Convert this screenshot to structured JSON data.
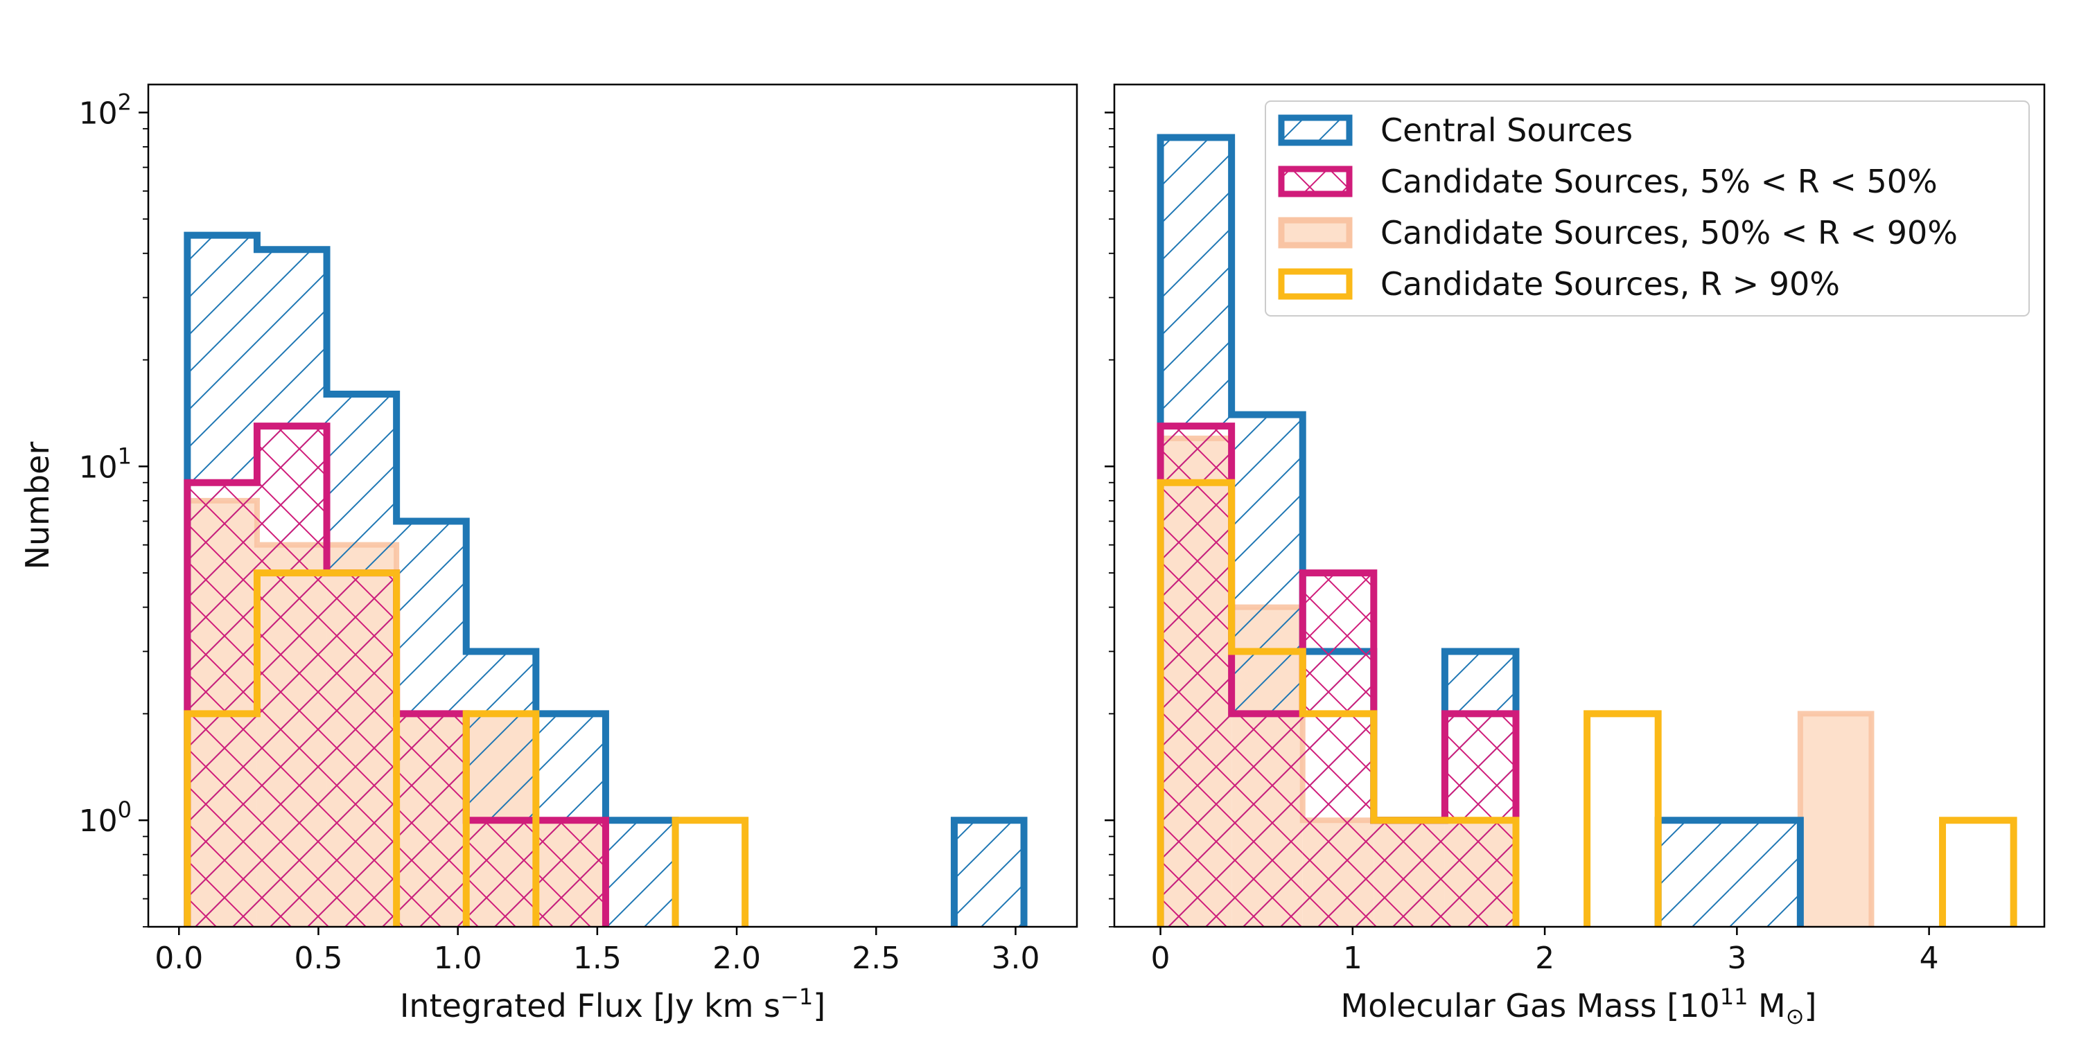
{
  "colors": {
    "central": "#1f77b4",
    "cand_5_50": "#d01c7a",
    "cand_50_90_fill": "#fde0cb",
    "cand_50_90_edge": "#f9c4a3",
    "cand_gt90": "#fbb918"
  },
  "y_label": "Number",
  "y_ticks": [
    {
      "base": "10",
      "exp": "0",
      "value": 1
    },
    {
      "base": "10",
      "exp": "1",
      "value": 10
    },
    {
      "base": "10",
      "exp": "2",
      "value": 100
    }
  ],
  "legend": [
    {
      "key": "central",
      "label": "Central Sources"
    },
    {
      "key": "cand_5_50",
      "label": "Candidate Sources, 5% < R < 50%"
    },
    {
      "key": "cand_50_90",
      "label": "Candidate Sources, 50% < R < 90%"
    },
    {
      "key": "cand_gt90",
      "label": "Candidate Sources, R > 90%"
    }
  ],
  "chart_data": [
    {
      "type": "histogram",
      "id": "left",
      "xlabel": "Integrated Flux [Jy km s",
      "xlabel_sup": "−1",
      "xlabel_tail": "]",
      "yscale": "log",
      "ylim": [
        0.5,
        120
      ],
      "xlim": [
        -0.11,
        3.22
      ],
      "xticks": [
        "0.0",
        "0.5",
        "1.0",
        "1.5",
        "2.0",
        "2.5",
        "3.0"
      ],
      "xtick_values": [
        0,
        0.5,
        1.0,
        1.5,
        2.0,
        2.5,
        3.0
      ],
      "series": [
        {
          "key": "cand_50_90",
          "name": "Candidate Sources, 50% < R < 90%",
          "style": "fill",
          "edges": [
            0.03,
            0.28,
            0.53,
            0.78,
            1.03,
            1.28,
            1.53
          ],
          "counts": [
            8,
            6,
            6,
            2,
            2,
            1
          ]
        },
        {
          "key": "central",
          "name": "Central Sources",
          "style": "hatch-diag",
          "edges": [
            0.03,
            0.28,
            0.53,
            0.78,
            1.03,
            1.28,
            1.53,
            1.78,
            2.03,
            2.28,
            2.53,
            2.78,
            3.03
          ],
          "counts": [
            45,
            41,
            16,
            7,
            3,
            2,
            1,
            0,
            0,
            0,
            0,
            1
          ]
        },
        {
          "key": "cand_5_50",
          "name": "Candidate Sources, 5% < R < 50%",
          "style": "hatch-cross",
          "edges": [
            0.03,
            0.28,
            0.53,
            0.78,
            1.03,
            1.28,
            1.53
          ],
          "counts": [
            9,
            13,
            5,
            2,
            1,
            1
          ]
        },
        {
          "key": "cand_gt90",
          "name": "Candidate Sources, R > 90%",
          "style": "outline",
          "edges": [
            0.03,
            0.28,
            0.53,
            0.78,
            1.03,
            1.28,
            1.53,
            1.78,
            2.03
          ],
          "counts": [
            2,
            5,
            5,
            0,
            2,
            0,
            0,
            1
          ]
        }
      ]
    },
    {
      "type": "histogram",
      "id": "right",
      "xlabel": "Molecular Gas Mass [10",
      "xlabel_sup": "11",
      "xlabel_tail": " M",
      "xlabel_sub": "⊙",
      "xlabel_end": "]",
      "yscale": "log",
      "ylim": [
        0.5,
        120
      ],
      "xlim": [
        -0.24,
        4.6
      ],
      "xticks": [
        "0",
        "1",
        "2",
        "3",
        "4"
      ],
      "xtick_values": [
        0,
        1,
        2,
        3,
        4
      ],
      "series": [
        {
          "key": "cand_50_90",
          "name": "Candidate Sources, 50% < R < 90%",
          "style": "fill",
          "edges": [
            0,
            0.37,
            0.74,
            1.11,
            1.48,
            1.85,
            2.22,
            2.59,
            2.96,
            3.33,
            3.7
          ],
          "counts": [
            12,
            4,
            1,
            1,
            1,
            0,
            0,
            0,
            0,
            2
          ]
        },
        {
          "key": "central",
          "name": "Central Sources",
          "style": "hatch-diag",
          "edges": [
            0,
            0.37,
            0.74,
            1.11,
            1.48,
            1.85,
            2.22,
            2.59,
            2.96,
            3.33
          ],
          "counts": [
            85,
            14,
            3,
            1,
            3,
            0,
            0,
            1,
            1
          ]
        },
        {
          "key": "cand_5_50",
          "name": "Candidate Sources, 5% < R < 50%",
          "style": "hatch-cross",
          "edges": [
            0,
            0.37,
            0.74,
            1.11,
            1.48,
            1.85
          ],
          "counts": [
            13,
            2,
            5,
            1,
            2
          ]
        },
        {
          "key": "cand_gt90",
          "name": "Candidate Sources, R > 90%",
          "style": "outline",
          "edges": [
            0,
            0.37,
            0.74,
            1.11,
            1.48,
            1.85,
            2.22,
            2.59,
            2.96,
            3.33,
            3.7,
            4.07,
            4.44
          ],
          "counts": [
            9,
            3,
            2,
            1,
            1,
            0,
            2,
            0,
            0,
            0,
            0,
            1
          ]
        }
      ]
    }
  ]
}
